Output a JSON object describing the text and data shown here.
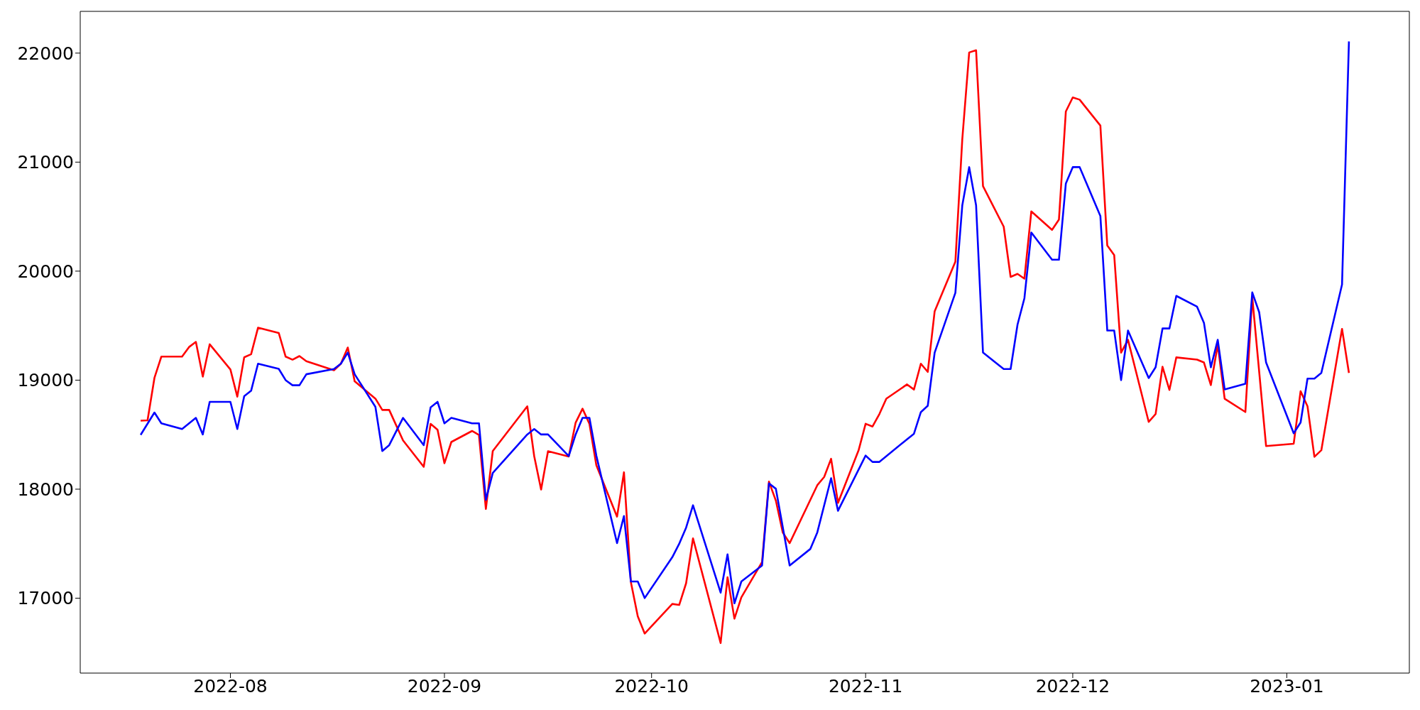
{
  "chart_data": {
    "type": "line",
    "xlim": [
      "2022-07-10T06:00",
      "2023-01-18T18:00"
    ],
    "ylim": [
      16313,
      22383
    ],
    "xticks": [
      {
        "value": "2022-08-01",
        "label": "2022-08"
      },
      {
        "value": "2022-09-01",
        "label": "2022-09"
      },
      {
        "value": "2022-10-01",
        "label": "2022-10"
      },
      {
        "value": "2022-11-01",
        "label": "2022-11"
      },
      {
        "value": "2022-12-01",
        "label": "2022-12"
      },
      {
        "value": "2023-01-01",
        "label": "2023-01"
      }
    ],
    "yticks": [
      17000,
      18000,
      19000,
      20000,
      21000,
      22000
    ],
    "series": [
      {
        "color": "#ff0000",
        "x": [
          "2022-07-19",
          "2022-07-20",
          "2022-07-21",
          "2022-07-22",
          "2022-07-25",
          "2022-07-26",
          "2022-07-27",
          "2022-07-28",
          "2022-07-29",
          "2022-08-01",
          "2022-08-02",
          "2022-08-03",
          "2022-08-04",
          "2022-08-05",
          "2022-08-08",
          "2022-08-09",
          "2022-08-10",
          "2022-08-11",
          "2022-08-12",
          "2022-08-16",
          "2022-08-17",
          "2022-08-18",
          "2022-08-19",
          "2022-08-22",
          "2022-08-23",
          "2022-08-24",
          "2022-08-26",
          "2022-08-29",
          "2022-08-30",
          "2022-08-31",
          "2022-09-01",
          "2022-09-02",
          "2022-09-05",
          "2022-09-06",
          "2022-09-07",
          "2022-09-08",
          "2022-09-13",
          "2022-09-14",
          "2022-09-15",
          "2022-09-16",
          "2022-09-19",
          "2022-09-20",
          "2022-09-21",
          "2022-09-22",
          "2022-09-23",
          "2022-09-26",
          "2022-09-27",
          "2022-09-28",
          "2022-09-29",
          "2022-09-30",
          "2022-10-04",
          "2022-10-05",
          "2022-10-06",
          "2022-10-07",
          "2022-10-11",
          "2022-10-12",
          "2022-10-13",
          "2022-10-14",
          "2022-10-17",
          "2022-10-18",
          "2022-10-19",
          "2022-10-20",
          "2022-10-21",
          "2022-10-25",
          "2022-10-26",
          "2022-10-27",
          "2022-10-28",
          "2022-10-31",
          "2022-11-01",
          "2022-11-02",
          "2022-11-03",
          "2022-11-04",
          "2022-11-07",
          "2022-11-08",
          "2022-11-09",
          "2022-11-10",
          "2022-11-11",
          "2022-11-14",
          "2022-11-15",
          "2022-11-16",
          "2022-11-17",
          "2022-11-18",
          "2022-11-21",
          "2022-11-22",
          "2022-11-23",
          "2022-11-24",
          "2022-11-25",
          "2022-11-28",
          "2022-11-29",
          "2022-11-30",
          "2022-12-01",
          "2022-12-02",
          "2022-12-05",
          "2022-12-06",
          "2022-12-07",
          "2022-12-08",
          "2022-12-09",
          "2022-12-12",
          "2022-12-13",
          "2022-12-14",
          "2022-12-15",
          "2022-12-16",
          "2022-12-19",
          "2022-12-20",
          "2022-12-21",
          "2022-12-22",
          "2022-12-23",
          "2022-12-26",
          "2022-12-27",
          "2022-12-29",
          "2023-01-02",
          "2023-01-03",
          "2023-01-04",
          "2023-01-05",
          "2023-01-06",
          "2023-01-09",
          "2023-01-10"
        ],
        "values": [
          18628,
          18632,
          19021,
          19216,
          19216,
          19303,
          19351,
          19033,
          19329,
          19098,
          18849,
          19210,
          19238,
          19481,
          19433,
          19216,
          19188,
          19221,
          19174,
          19091,
          19151,
          19299,
          18989,
          18831,
          18727,
          18727,
          18448,
          18205,
          18599,
          18545,
          18238,
          18433,
          18534,
          18498,
          17819,
          18350,
          18760,
          18303,
          17997,
          18348,
          18300,
          18610,
          18738,
          18599,
          18220,
          17748,
          18155,
          17148,
          16834,
          16676,
          16947,
          16938,
          17137,
          17549,
          16589,
          17192,
          16812,
          17007,
          17332,
          18069,
          17895,
          17603,
          17505,
          18036,
          18112,
          18279,
          17874,
          18360,
          18600,
          18575,
          18690,
          18830,
          18961,
          18914,
          19151,
          19076,
          19632,
          20087,
          21209,
          22006,
          22026,
          20780,
          20408,
          19947,
          19975,
          19931,
          20548,
          20379,
          20473,
          21465,
          21593,
          21573,
          21335,
          20235,
          20148,
          19253,
          19370,
          18617,
          18689,
          19123,
          18910,
          19209,
          19188,
          19162,
          18955,
          19326,
          18830,
          18708,
          19760,
          18396,
          18417,
          18899,
          18760,
          18297,
          18357,
          19470,
          19066
        ]
      },
      {
        "color": "#0000ff",
        "x": [
          "2022-07-19",
          "2022-07-21",
          "2022-07-22",
          "2022-07-25",
          "2022-07-27",
          "2022-07-28",
          "2022-07-29",
          "2022-08-01",
          "2022-08-02",
          "2022-08-03",
          "2022-08-04",
          "2022-08-05",
          "2022-08-08",
          "2022-08-09",
          "2022-08-10",
          "2022-08-11",
          "2022-08-12",
          "2022-08-16",
          "2022-08-17",
          "2022-08-18",
          "2022-08-19",
          "2022-08-22",
          "2022-08-23",
          "2022-08-24",
          "2022-08-26",
          "2022-08-29",
          "2022-08-30",
          "2022-08-31",
          "2022-09-01",
          "2022-09-02",
          "2022-09-05",
          "2022-09-06",
          "2022-09-07",
          "2022-09-08",
          "2022-09-13",
          "2022-09-14",
          "2022-09-15",
          "2022-09-16",
          "2022-09-19",
          "2022-09-20",
          "2022-09-21",
          "2022-09-22",
          "2022-09-23",
          "2022-09-26",
          "2022-09-27",
          "2022-09-28",
          "2022-09-29",
          "2022-09-30",
          "2022-10-04",
          "2022-10-05",
          "2022-10-06",
          "2022-10-07",
          "2022-10-11",
          "2022-10-12",
          "2022-10-13",
          "2022-10-14",
          "2022-10-17",
          "2022-10-18",
          "2022-10-19",
          "2022-10-21",
          "2022-10-24",
          "2022-10-25",
          "2022-10-27",
          "2022-10-28",
          "2022-11-01",
          "2022-11-02",
          "2022-11-03",
          "2022-11-07",
          "2022-11-08",
          "2022-11-09",
          "2022-11-10",
          "2022-11-11",
          "2022-11-14",
          "2022-11-15",
          "2022-11-16",
          "2022-11-17",
          "2022-11-18",
          "2022-11-21",
          "2022-11-22",
          "2022-11-23",
          "2022-11-24",
          "2022-11-25",
          "2022-11-28",
          "2022-11-29",
          "2022-11-30",
          "2022-12-01",
          "2022-12-02",
          "2022-12-05",
          "2022-12-06",
          "2022-12-07",
          "2022-12-08",
          "2022-12-09",
          "2022-12-12",
          "2022-12-13",
          "2022-12-14",
          "2022-12-15",
          "2022-12-16",
          "2022-12-19",
          "2022-12-20",
          "2022-12-21",
          "2022-12-22",
          "2022-12-23",
          "2022-12-26",
          "2022-12-27",
          "2022-12-28",
          "2022-12-29",
          "2023-01-02",
          "2023-01-03",
          "2023-01-04",
          "2023-01-05",
          "2023-01-06",
          "2023-01-09",
          "2023-01-10"
        ],
        "values": [
          18498,
          18703,
          18604,
          18552,
          18654,
          18502,
          18801,
          18801,
          18552,
          18853,
          18903,
          19151,
          19104,
          19000,
          18953,
          18953,
          19054,
          19102,
          19151,
          19253,
          19054,
          18755,
          18350,
          18404,
          18654,
          18404,
          18751,
          18801,
          18604,
          18654,
          18604,
          18604,
          17902,
          18149,
          18502,
          18552,
          18502,
          18502,
          18303,
          18502,
          18654,
          18654,
          18307,
          17505,
          17754,
          17153,
          17153,
          17001,
          17376,
          17499,
          17647,
          17852,
          17051,
          17402,
          16953,
          17153,
          17300,
          18053,
          18004,
          17300,
          17452,
          17603,
          18101,
          17802,
          18308,
          18250,
          18250,
          18458,
          18508,
          18707,
          18765,
          19253,
          19801,
          20603,
          20954,
          20603,
          19253,
          19102,
          19102,
          19509,
          19752,
          20354,
          20105,
          20105,
          20804,
          20954,
          20954,
          20506,
          19455,
          19455,
          19000,
          19455,
          19019,
          19118,
          19474,
          19474,
          19773,
          19674,
          19526,
          19118,
          19370,
          18915,
          18967,
          19805,
          19623,
          19162,
          18513,
          18612,
          19014,
          19014,
          19066,
          19877,
          22107
        ]
      }
    ]
  }
}
